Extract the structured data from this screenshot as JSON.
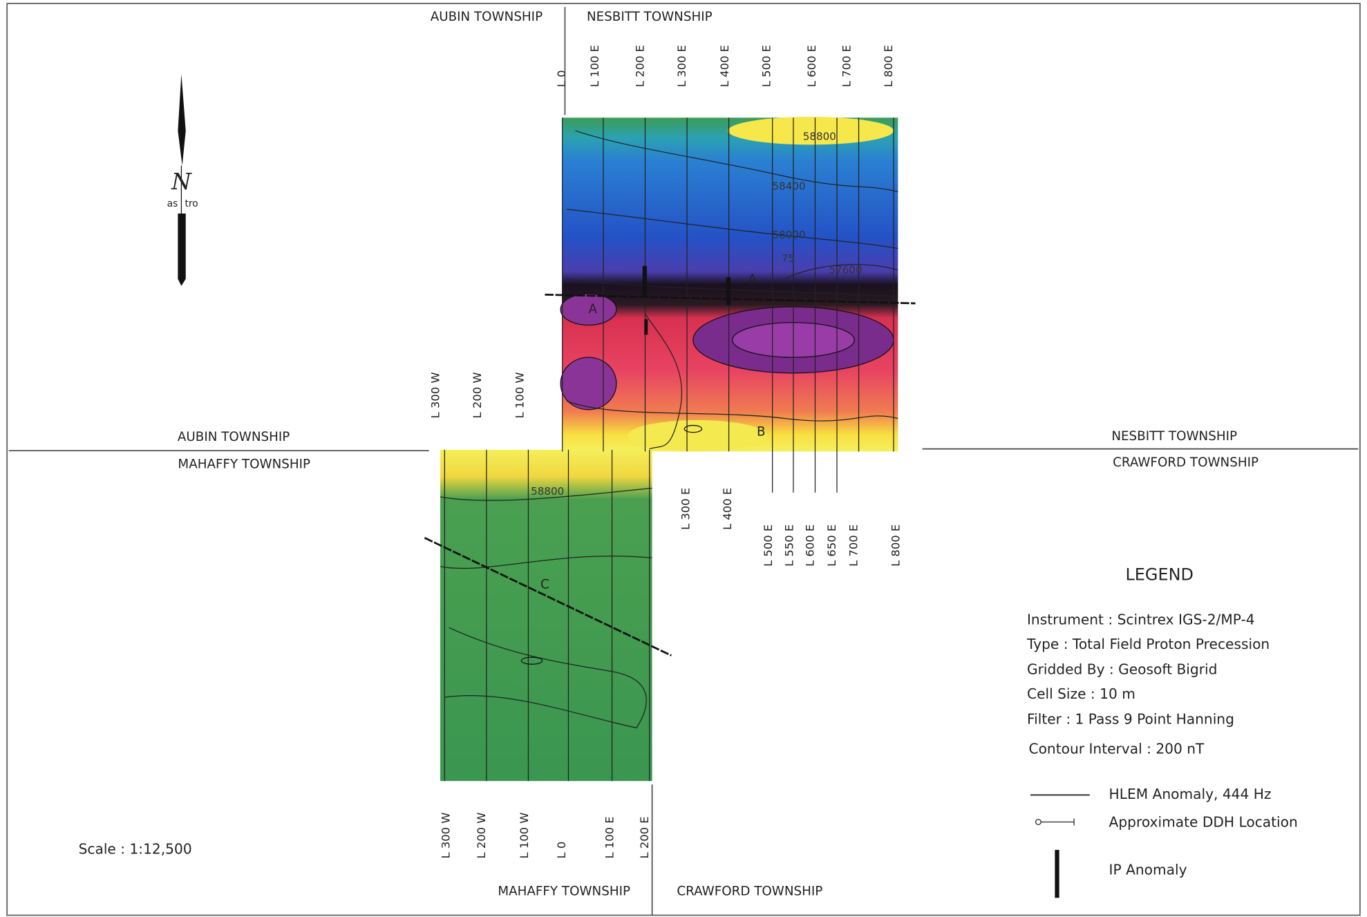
{
  "townships": {
    "top_left": "AUBIN TOWNSHIP",
    "top_right": "NESBITT TOWNSHIP",
    "left_upper": "AUBIN TOWNSHIP",
    "left_lower": "MAHAFFY TOWNSHIP",
    "right_upper": "NESBITT TOWNSHIP",
    "right_lower": "CRAWFORD TOWNSHIP",
    "bottom_left": "MAHAFFY TOWNSHIP",
    "bottom_right": "CRAWFORD TOWNSHIP"
  },
  "grid_lines": {
    "top": [
      "L 0",
      "L 100 E",
      "L 200 E",
      "L 300 E",
      "L 400 E",
      "L 500 E",
      "L 600 E",
      "L 700 E",
      "L 800 E"
    ],
    "left": [
      "L 300 W",
      "L 200 W",
      "L 100 W"
    ],
    "middle": [
      "L 300 E",
      "L 400 E"
    ],
    "lower_right": [
      "L 500 E",
      "L 550 E",
      "L 600 E",
      "L 650 E",
      "L 700 E",
      "L 800 E"
    ],
    "bottom": [
      "L 300 W",
      "L 200 W",
      "L 100 W",
      "L 0",
      "L 100 E",
      "L 200 E"
    ]
  },
  "contour_labels": [
    "58800",
    "58400",
    "58000",
    "57600",
    "75",
    "58800"
  ],
  "anomaly_labels": [
    "A",
    "A",
    "B",
    "C"
  ],
  "north_arrow": {
    "label": "N",
    "left": "as",
    "right": "tro"
  },
  "legend": {
    "title": "LEGEND",
    "items": [
      "Instrument : Scintrex IGS-2/MP-4",
      "Type : Total Field Proton Precession",
      "Gridded By : Geosoft Bigrid",
      "Cell Size : 10 m",
      "Filter : 1 Pass 9 Point Hanning",
      "Contour Interval : 200 nT"
    ],
    "symbols": [
      "HLEM Anomaly, 444 Hz",
      "Approximate DDH Location",
      "IP Anomaly"
    ]
  },
  "scale": "Scale :  1:12,500"
}
